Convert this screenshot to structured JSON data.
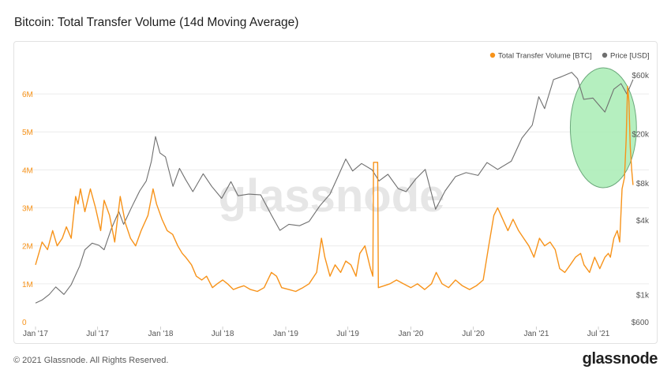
{
  "header": {
    "title": "Bitcoin: Total Transfer Volume (14d Moving Average)"
  },
  "footer": {
    "copyright": "© 2021 Glassnode. All Rights Reserved.",
    "brand": "glassnode"
  },
  "watermark": "glassnode",
  "colors": {
    "volume": "#f7931a",
    "price": "#6f6f6f",
    "highlight_fill": "#a8ecb4",
    "highlight_stroke": "#6aa87a",
    "grid": "#ececec"
  },
  "chart_data": {
    "type": "line",
    "title": "Bitcoin: Total Transfer Volume (14d Moving Average)",
    "x_ticks": [
      "Jan '17",
      "Jul '17",
      "Jan '18",
      "Jul '18",
      "Jan '19",
      "Jul '19",
      "Jan '20",
      "Jul '20",
      "Jan '21",
      "Jul '21"
    ],
    "x_range": [
      "2017-01-01",
      "2021-10-01"
    ],
    "y_left": {
      "ticks": [
        "0",
        "1M",
        "2M",
        "3M",
        "4M",
        "5M",
        "6M"
      ],
      "range": [
        0,
        6500000
      ]
    },
    "y_right": {
      "ticks": [
        "$600",
        "$1k",
        "$4k",
        "$8k",
        "$20k",
        "$60k"
      ],
      "scale": "log",
      "range": [
        600,
        60000
      ]
    },
    "legend": {
      "placement": "top-right",
      "items": [
        "Total Transfer Volume [BTC]",
        "Price [USD]"
      ]
    },
    "grid": true,
    "highlight": {
      "shape": "ellipse",
      "x_range": [
        "2021-04-10",
        "2021-10-20"
      ]
    },
    "series": [
      {
        "name": "Total Transfer Volume [BTC]",
        "axis": "left",
        "points": [
          [
            "2017-01-01",
            1500000
          ],
          [
            "2017-01-20",
            2100000
          ],
          [
            "2017-02-05",
            1900000
          ],
          [
            "2017-02-20",
            2400000
          ],
          [
            "2017-03-05",
            2000000
          ],
          [
            "2017-03-20",
            2200000
          ],
          [
            "2017-04-01",
            2500000
          ],
          [
            "2017-04-15",
            2200000
          ],
          [
            "2017-04-28",
            3300000
          ],
          [
            "2017-05-05",
            3100000
          ],
          [
            "2017-05-12",
            3500000
          ],
          [
            "2017-05-25",
            2900000
          ],
          [
            "2017-06-10",
            3500000
          ],
          [
            "2017-06-25",
            3000000
          ],
          [
            "2017-07-10",
            2400000
          ],
          [
            "2017-07-20",
            3200000
          ],
          [
            "2017-08-05",
            2800000
          ],
          [
            "2017-08-20",
            2100000
          ],
          [
            "2017-09-05",
            3300000
          ],
          [
            "2017-09-20",
            2600000
          ],
          [
            "2017-10-05",
            2200000
          ],
          [
            "2017-10-20",
            2000000
          ],
          [
            "2017-11-05",
            2400000
          ],
          [
            "2017-11-25",
            2800000
          ],
          [
            "2017-12-10",
            3500000
          ],
          [
            "2017-12-20",
            3100000
          ],
          [
            "2018-01-05",
            2700000
          ],
          [
            "2018-01-20",
            2400000
          ],
          [
            "2018-02-05",
            2300000
          ],
          [
            "2018-02-20",
            2000000
          ],
          [
            "2018-03-05",
            1800000
          ],
          [
            "2018-03-15",
            1700000
          ],
          [
            "2018-04-01",
            1500000
          ],
          [
            "2018-04-15",
            1200000
          ],
          [
            "2018-05-01",
            1100000
          ],
          [
            "2018-05-15",
            1200000
          ],
          [
            "2018-06-01",
            900000
          ],
          [
            "2018-06-15",
            1000000
          ],
          [
            "2018-07-01",
            1100000
          ],
          [
            "2018-07-15",
            1000000
          ],
          [
            "2018-08-01",
            850000
          ],
          [
            "2018-08-15",
            900000
          ],
          [
            "2018-09-01",
            950000
          ],
          [
            "2018-09-20",
            850000
          ],
          [
            "2018-10-10",
            800000
          ],
          [
            "2018-10-30",
            900000
          ],
          [
            "2018-11-20",
            1300000
          ],
          [
            "2018-12-05",
            1200000
          ],
          [
            "2018-12-20",
            900000
          ],
          [
            "2019-01-10",
            850000
          ],
          [
            "2019-01-30",
            800000
          ],
          [
            "2019-02-20",
            900000
          ],
          [
            "2019-03-10",
            1000000
          ],
          [
            "2019-04-01",
            1300000
          ],
          [
            "2019-04-15",
            2200000
          ],
          [
            "2019-04-25",
            1700000
          ],
          [
            "2019-05-10",
            1200000
          ],
          [
            "2019-05-25",
            1500000
          ],
          [
            "2019-06-10",
            1300000
          ],
          [
            "2019-06-25",
            1600000
          ],
          [
            "2019-07-10",
            1500000
          ],
          [
            "2019-07-25",
            1200000
          ],
          [
            "2019-08-05",
            1800000
          ],
          [
            "2019-08-20",
            2000000
          ],
          [
            "2019-09-05",
            1400000
          ],
          [
            "2019-09-12",
            1200000
          ],
          [
            "2019-09-14",
            4200000
          ],
          [
            "2019-09-26",
            4200000
          ],
          [
            "2019-09-28",
            900000
          ],
          [
            "2019-10-15",
            950000
          ],
          [
            "2019-11-01",
            1000000
          ],
          [
            "2019-11-20",
            1100000
          ],
          [
            "2019-12-10",
            1000000
          ],
          [
            "2020-01-01",
            900000
          ],
          [
            "2020-01-20",
            1000000
          ],
          [
            "2020-02-10",
            850000
          ],
          [
            "2020-03-01",
            1000000
          ],
          [
            "2020-03-15",
            1300000
          ],
          [
            "2020-04-01",
            1000000
          ],
          [
            "2020-04-20",
            900000
          ],
          [
            "2020-05-10",
            1100000
          ],
          [
            "2020-05-30",
            950000
          ],
          [
            "2020-06-20",
            850000
          ],
          [
            "2020-07-10",
            950000
          ],
          [
            "2020-07-30",
            1100000
          ],
          [
            "2020-08-15",
            2000000
          ],
          [
            "2020-08-30",
            2800000
          ],
          [
            "2020-09-10",
            3000000
          ],
          [
            "2020-09-25",
            2700000
          ],
          [
            "2020-10-10",
            2400000
          ],
          [
            "2020-10-25",
            2700000
          ],
          [
            "2020-11-10",
            2400000
          ],
          [
            "2020-11-25",
            2200000
          ],
          [
            "2020-12-10",
            2000000
          ],
          [
            "2020-12-25",
            1700000
          ],
          [
            "2021-01-10",
            2200000
          ],
          [
            "2021-01-25",
            2000000
          ],
          [
            "2021-02-10",
            2100000
          ],
          [
            "2021-02-25",
            1900000
          ],
          [
            "2021-03-10",
            1400000
          ],
          [
            "2021-03-25",
            1300000
          ],
          [
            "2021-04-10",
            1500000
          ],
          [
            "2021-04-25",
            1700000
          ],
          [
            "2021-05-10",
            1800000
          ],
          [
            "2021-05-20",
            1500000
          ],
          [
            "2021-06-05",
            1300000
          ],
          [
            "2021-06-20",
            1700000
          ],
          [
            "2021-07-05",
            1400000
          ],
          [
            "2021-07-20",
            1700000
          ],
          [
            "2021-07-30",
            1800000
          ],
          [
            "2021-08-05",
            1700000
          ],
          [
            "2021-08-15",
            2200000
          ],
          [
            "2021-08-25",
            2400000
          ],
          [
            "2021-09-01",
            2100000
          ],
          [
            "2021-09-08",
            3500000
          ],
          [
            "2021-09-15",
            3800000
          ],
          [
            "2021-09-20",
            4800000
          ],
          [
            "2021-09-24",
            6200000
          ],
          [
            "2021-09-28",
            5800000
          ],
          [
            "2021-10-02",
            4600000
          ],
          [
            "2021-10-06",
            4000000
          ],
          [
            "2021-10-10",
            3600000
          ]
        ]
      },
      {
        "name": "Price [USD]",
        "axis": "right",
        "points": [
          [
            "2017-01-01",
            850
          ],
          [
            "2017-01-20",
            900
          ],
          [
            "2017-02-10",
            1000
          ],
          [
            "2017-03-01",
            1150
          ],
          [
            "2017-03-25",
            1000
          ],
          [
            "2017-04-15",
            1200
          ],
          [
            "2017-05-10",
            1700
          ],
          [
            "2017-05-25",
            2300
          ],
          [
            "2017-06-15",
            2600
          ],
          [
            "2017-07-05",
            2500
          ],
          [
            "2017-07-20",
            2300
          ],
          [
            "2017-08-10",
            3400
          ],
          [
            "2017-09-01",
            4700
          ],
          [
            "2017-09-15",
            3700
          ],
          [
            "2017-10-10",
            5200
          ],
          [
            "2017-11-01",
            6900
          ],
          [
            "2017-11-20",
            8300
          ],
          [
            "2017-12-05",
            12000
          ],
          [
            "2017-12-17",
            19000
          ],
          [
            "2017-12-30",
            14000
          ],
          [
            "2018-01-15",
            13000
          ],
          [
            "2018-02-06",
            7500
          ],
          [
            "2018-02-25",
            10500
          ],
          [
            "2018-03-15",
            8500
          ],
          [
            "2018-04-05",
            6800
          ],
          [
            "2018-05-05",
            9500
          ],
          [
            "2018-05-30",
            7500
          ],
          [
            "2018-06-28",
            6000
          ],
          [
            "2018-07-25",
            8200
          ],
          [
            "2018-08-15",
            6300
          ],
          [
            "2018-09-15",
            6500
          ],
          [
            "2018-10-20",
            6400
          ],
          [
            "2018-11-20",
            4400
          ],
          [
            "2018-12-15",
            3300
          ],
          [
            "2019-01-10",
            3700
          ],
          [
            "2019-02-10",
            3600
          ],
          [
            "2019-03-10",
            3900
          ],
          [
            "2019-04-10",
            5200
          ],
          [
            "2019-05-10",
            6500
          ],
          [
            "2019-05-30",
            8600
          ],
          [
            "2019-06-25",
            12500
          ],
          [
            "2019-07-15",
            10000
          ],
          [
            "2019-08-10",
            11500
          ],
          [
            "2019-09-10",
            10200
          ],
          [
            "2019-09-30",
            8300
          ],
          [
            "2019-10-26",
            9400
          ],
          [
            "2019-11-25",
            7200
          ],
          [
            "2019-12-18",
            6800
          ],
          [
            "2020-01-15",
            8600
          ],
          [
            "2020-02-12",
            10300
          ],
          [
            "2020-03-13",
            4900
          ],
          [
            "2020-04-10",
            6900
          ],
          [
            "2020-05-10",
            9000
          ],
          [
            "2020-06-10",
            9700
          ],
          [
            "2020-07-15",
            9200
          ],
          [
            "2020-08-10",
            11700
          ],
          [
            "2020-09-10",
            10300
          ],
          [
            "2020-10-20",
            12000
          ],
          [
            "2020-11-20",
            18500
          ],
          [
            "2020-12-20",
            23500
          ],
          [
            "2021-01-08",
            40000
          ],
          [
            "2021-01-25",
            32000
          ],
          [
            "2021-02-20",
            55000
          ],
          [
            "2021-03-15",
            58000
          ],
          [
            "2021-04-14",
            63000
          ],
          [
            "2021-05-01",
            56000
          ],
          [
            "2021-05-19",
            38000
          ],
          [
            "2021-06-15",
            39000
          ],
          [
            "2021-07-20",
            30000
          ],
          [
            "2021-08-15",
            46000
          ],
          [
            "2021-09-05",
            51000
          ],
          [
            "2021-09-22",
            42000
          ],
          [
            "2021-10-10",
            55000
          ]
        ]
      }
    ]
  }
}
